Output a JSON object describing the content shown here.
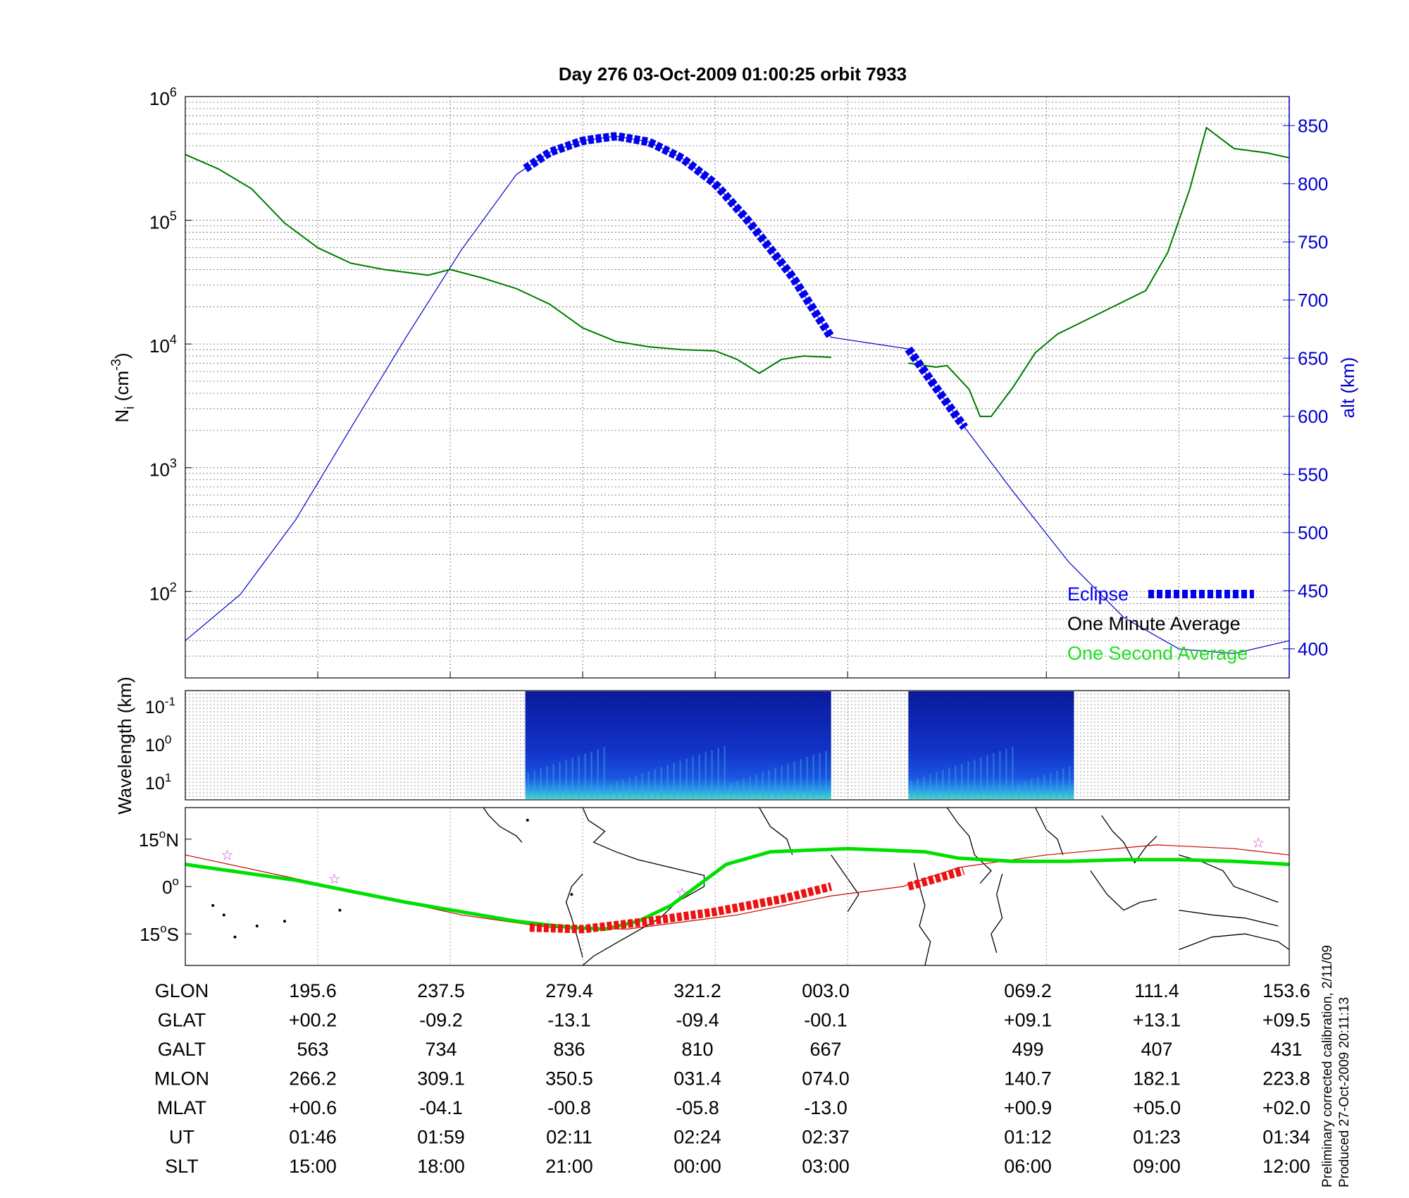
{
  "title": "Day 276  03-Oct-2009 01:00:25   orbit 7933",
  "footer": {
    "line1": "Preliminary corrected calibration, 2/11/09",
    "line2": "Produced 27-Oct-2009 20:11:13"
  },
  "colors": {
    "one_minute": "#0a5a0a",
    "one_second": "#22dd22",
    "eclipse": "#0000ee",
    "altitude": "#0000cc",
    "track_green": "#00e000",
    "track_red": "#ee1111",
    "footprint": "#cc0000"
  },
  "chart_data": [
    {
      "type": "line",
      "panel": "ion density and altitude",
      "ylabel_main": "N",
      "ylabel_sub": "i",
      "ylabel_unit_pre": " (cm",
      "ylabel_unit_sup": "-3",
      "ylabel_unit_post": ")",
      "y_log": true,
      "ylim": [
        20,
        1000000
      ],
      "yticks": [
        {
          "base": "10",
          "exp": "2",
          "value": 100
        },
        {
          "base": "10",
          "exp": "3",
          "value": 1000
        },
        {
          "base": "10",
          "exp": "4",
          "value": 10000
        },
        {
          "base": "10",
          "exp": "5",
          "value": 100000
        },
        {
          "base": "10",
          "exp": "6",
          "value": 1000000
        }
      ],
      "y2label": "alt (km)",
      "y2lim": [
        375,
        875
      ],
      "y2ticks": [
        "400",
        "450",
        "500",
        "550",
        "600",
        "650",
        "700",
        "750",
        "800",
        "850"
      ],
      "x_ticks": [
        0.12,
        0.24,
        0.36,
        0.48,
        0.6,
        0.78,
        0.9
      ],
      "grid": true,
      "legend_position": "bottom-right",
      "legend": [
        "Eclipse",
        "One Minute Average",
        "One Second Average"
      ],
      "series": [
        {
          "name": "One Minute Average",
          "segments": [
            [
              [
                0.0,
                340000
              ],
              [
                0.03,
                260000
              ],
              [
                0.06,
                180000
              ],
              [
                0.09,
                95000
              ],
              [
                0.12,
                60000
              ],
              [
                0.15,
                45000
              ],
              [
                0.18,
                40000
              ],
              [
                0.22,
                36000
              ],
              [
                0.24,
                40000
              ],
              [
                0.27,
                34000
              ],
              [
                0.3,
                28000
              ],
              [
                0.33,
                21000
              ],
              [
                0.36,
                13500
              ],
              [
                0.39,
                10500
              ],
              [
                0.42,
                9500
              ],
              [
                0.45,
                9000
              ],
              [
                0.48,
                8800
              ],
              [
                0.5,
                7500
              ],
              [
                0.52,
                5800
              ],
              [
                0.54,
                7500
              ],
              [
                0.56,
                8000
              ],
              [
                0.585,
                7800
              ]
            ],
            [
              [
                0.655,
                7000
              ],
              [
                0.68,
                6500
              ],
              [
                0.69,
                6700
              ],
              [
                0.71,
                4300
              ],
              [
                0.72,
                2600
              ],
              [
                0.73,
                2600
              ],
              [
                0.75,
                4500
              ],
              [
                0.77,
                8500
              ],
              [
                0.79,
                12000
              ],
              [
                0.83,
                18000
              ],
              [
                0.87,
                27000
              ],
              [
                0.89,
                55000
              ],
              [
                0.91,
                180000
              ],
              [
                0.925,
                560000
              ],
              [
                0.95,
                380000
              ],
              [
                0.98,
                350000
              ],
              [
                1.0,
                320000
              ]
            ]
          ]
        },
        {
          "name": "Altitude",
          "axis": "y2",
          "points": [
            [
              0.0,
              407
            ],
            [
              0.05,
              447
            ],
            [
              0.1,
              511
            ],
            [
              0.15,
              590
            ],
            [
              0.2,
              668
            ],
            [
              0.25,
              743
            ],
            [
              0.3,
              808
            ],
            [
              0.33,
              827
            ],
            [
              0.36,
              837
            ],
            [
              0.39,
              841
            ],
            [
              0.42,
              836
            ],
            [
              0.45,
              822
            ],
            [
              0.48,
              800
            ],
            [
              0.51,
              768
            ],
            [
              0.55,
              720
            ],
            [
              0.585,
              668
            ],
            [
              0.655,
              658
            ],
            [
              0.7,
              598
            ],
            [
              0.75,
              535
            ],
            [
              0.8,
              475
            ],
            [
              0.85,
              427
            ],
            [
              0.9,
              400
            ],
            [
              0.95,
              396
            ],
            [
              1.0,
              407
            ]
          ]
        },
        {
          "name": "Eclipse",
          "axis": "y2",
          "segments": [
            [
              0.308,
              0.585
            ],
            [
              0.655,
              0.706
            ]
          ]
        }
      ]
    },
    {
      "type": "heatmap",
      "panel": "wavelength spectrogram",
      "ylabel": "Wavelength (km)",
      "y_log": true,
      "yticks": [
        {
          "base": "10",
          "exp": "-1"
        },
        {
          "base": "10",
          "exp": "0"
        },
        {
          "base": "10",
          "exp": "1"
        }
      ],
      "blocks": [
        [
          0.308,
          0.585
        ],
        [
          0.655,
          0.805
        ]
      ]
    },
    {
      "type": "map",
      "panel": "orbit ground track",
      "ylabels": [
        {
          "num": "15",
          "hemi": "N"
        },
        {
          "num": "0",
          "hemi": ""
        },
        {
          "num": "15",
          "hemi": "S"
        }
      ],
      "ylim": [
        -25,
        25
      ],
      "ground_track": [
        [
          0.0,
          7
        ],
        [
          0.1,
          2
        ],
        [
          0.2,
          -5
        ],
        [
          0.3,
          -11
        ],
        [
          0.35,
          -13
        ],
        [
          0.38,
          -13.5
        ],
        [
          0.41,
          -11
        ],
        [
          0.44,
          -6
        ],
        [
          0.49,
          7
        ],
        [
          0.53,
          11
        ],
        [
          0.6,
          12
        ],
        [
          0.67,
          11
        ],
        [
          0.7,
          9
        ],
        [
          0.75,
          8
        ],
        [
          0.8,
          8
        ],
        [
          0.85,
          8.5
        ],
        [
          0.9,
          8.5
        ],
        [
          0.95,
          8
        ],
        [
          1.0,
          7
        ]
      ],
      "footprint": [
        [
          0.0,
          10
        ],
        [
          0.12,
          1
        ],
        [
          0.25,
          -9
        ],
        [
          0.33,
          -13
        ],
        [
          0.4,
          -13.5
        ],
        [
          0.5,
          -9
        ],
        [
          0.585,
          -3
        ],
        [
          0.65,
          0
        ],
        [
          0.7,
          6
        ],
        [
          0.78,
          10
        ],
        [
          0.88,
          13.2
        ],
        [
          0.95,
          12
        ],
        [
          1.0,
          10
        ]
      ],
      "red_track": [
        [
          [
            0.312,
            -13
          ],
          [
            0.36,
            -13.5
          ],
          [
            0.42,
            -11
          ],
          [
            0.48,
            -8
          ],
          [
            0.54,
            -4
          ],
          [
            0.585,
            0
          ]
        ],
        [
          [
            0.655,
            0
          ],
          [
            0.705,
            5
          ]
        ]
      ],
      "stars": [
        [
          0.038,
          10
        ],
        [
          0.135,
          2.5
        ],
        [
          0.45,
          -2
        ],
        [
          0.972,
          14
        ]
      ]
    }
  ],
  "table": {
    "rows": [
      {
        "label": "GLON",
        "values": [
          "195.6",
          "237.5",
          "279.4",
          "321.2",
          "003.0",
          "069.2",
          "111.4",
          "153.6"
        ]
      },
      {
        "label": "GLAT",
        "values": [
          "+00.2",
          "-09.2",
          "-13.1",
          "-09.4",
          "-00.1",
          "+09.1",
          "+13.1",
          "+09.5"
        ]
      },
      {
        "label": "GALT",
        "values": [
          "563",
          "734",
          "836",
          "810",
          "667",
          "499",
          "407",
          "431"
        ]
      },
      {
        "label": "MLON",
        "values": [
          "266.2",
          "309.1",
          "350.5",
          "031.4",
          "074.0",
          "140.7",
          "182.1",
          "223.8"
        ]
      },
      {
        "label": "MLAT",
        "values": [
          "+00.6",
          "-04.1",
          "-00.8",
          "-05.8",
          "-13.0",
          "+00.9",
          "+05.0",
          "+02.0"
        ]
      },
      {
        "label": "UT",
        "values": [
          "01:46",
          "01:59",
          "02:11",
          "02:24",
          "02:37",
          "01:12",
          "01:23",
          "01:34"
        ]
      },
      {
        "label": "SLT",
        "values": [
          "15:00",
          "18:00",
          "21:00",
          "00:00",
          "03:00",
          "06:00",
          "09:00",
          "12:00"
        ]
      }
    ]
  }
}
